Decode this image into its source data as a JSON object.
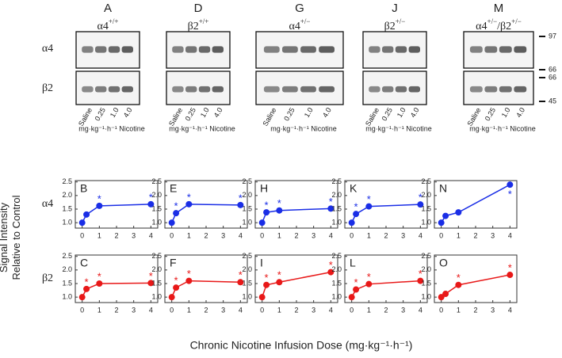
{
  "figure": {
    "blot_letters": [
      "A",
      "D",
      "G",
      "J",
      "M"
    ],
    "genotypes": [
      [
        "α4",
        "+/+"
      ],
      [
        "β2",
        "+/+"
      ],
      [
        "α4",
        "+/−"
      ],
      [
        "β2",
        "+/−"
      ],
      [
        "α4",
        "+/−",
        "/β2",
        "+/−"
      ]
    ],
    "blot_rows": [
      "α4",
      "β2"
    ],
    "lanes": [
      "Saline",
      "0.25",
      "1.0",
      "4.0"
    ],
    "dose_unit": "mg·kg⁻¹·h⁻¹ Nicotine",
    "markers": [
      "97",
      "66",
      "66",
      "45"
    ],
    "chart_rows": [
      "α4",
      "β2"
    ],
    "y_label": [
      "Signal Intensity",
      "Relative to Control"
    ],
    "x_label": "Chronic Nicotine Infusion Dose (mg·kg⁻¹·h⁻¹)"
  },
  "chart_data": [
    {
      "type": "line",
      "title": "B",
      "x": [
        0,
        0.25,
        1,
        4
      ],
      "values": [
        1,
        1.3,
        1.62,
        1.68
      ],
      "color": "#1a2ee6",
      "annotations": [
        {
          "x": 1,
          "text": "*"
        },
        {
          "x": 4,
          "text": "*"
        }
      ],
      "xlim": [
        -0.4,
        4.4
      ],
      "ylim": [
        0.8,
        2.55
      ],
      "xticks": [
        0,
        1,
        2,
        3,
        4
      ],
      "yticks": [
        {
          "value": 1,
          "label": "1.0"
        },
        {
          "value": 1.5,
          "label": "1.5"
        },
        {
          "value": 2,
          "label": "2.0"
        },
        {
          "value": 2.5,
          "label": "2.5"
        }
      ]
    },
    {
      "type": "line",
      "title": "E",
      "x": [
        0,
        0.25,
        1,
        4
      ],
      "values": [
        1,
        1.35,
        1.68,
        1.65
      ],
      "color": "#1a2ee6",
      "annotations": [
        {
          "x": 0.25,
          "text": "*"
        },
        {
          "x": 1,
          "text": "*"
        },
        {
          "x": 4,
          "text": "*"
        }
      ],
      "xlim": [
        -0.4,
        4.4
      ],
      "ylim": [
        0.8,
        2.55
      ],
      "xticks": [
        0,
        1,
        2,
        3,
        4
      ],
      "yticks": [
        {
          "value": 1,
          "label": "1.0"
        },
        {
          "value": 1.5,
          "label": "1.5"
        },
        {
          "value": 2,
          "label": "2.0"
        },
        {
          "value": 2.5,
          "label": "2.5"
        }
      ]
    },
    {
      "type": "line",
      "title": "H",
      "x": [
        0,
        0.25,
        1,
        4
      ],
      "values": [
        1,
        1.38,
        1.45,
        1.52
      ],
      "color": "#1a2ee6",
      "annotations": [
        {
          "x": 0.25,
          "text": "*"
        },
        {
          "x": 1,
          "text": "*"
        },
        {
          "x": 4,
          "text": "*"
        }
      ],
      "xlim": [
        -0.4,
        4.4
      ],
      "ylim": [
        0.8,
        2.55
      ],
      "xticks": [
        0,
        1,
        2,
        3,
        4
      ],
      "yticks": [
        {
          "value": 1,
          "label": "1.0"
        },
        {
          "value": 1.5,
          "label": "1.5"
        },
        {
          "value": 2,
          "label": "2.0"
        },
        {
          "value": 2.5,
          "label": "2.5"
        }
      ]
    },
    {
      "type": "line",
      "title": "K",
      "x": [
        0,
        0.25,
        1,
        4
      ],
      "values": [
        1,
        1.32,
        1.6,
        1.67
      ],
      "color": "#1a2ee6",
      "annotations": [
        {
          "x": 0.25,
          "text": "*"
        },
        {
          "x": 1,
          "text": "*"
        },
        {
          "x": 4,
          "text": "*"
        }
      ],
      "xlim": [
        -0.4,
        4.4
      ],
      "ylim": [
        0.8,
        2.55
      ],
      "xticks": [
        0,
        1,
        2,
        3,
        4
      ],
      "yticks": [
        {
          "value": 1,
          "label": "1.0"
        },
        {
          "value": 1.5,
          "label": "1.5"
        },
        {
          "value": 2,
          "label": "2.0"
        },
        {
          "value": 2.5,
          "label": "2.5"
        }
      ]
    },
    {
      "type": "line",
      "title": "N",
      "x": [
        0,
        0.25,
        1,
        4
      ],
      "values": [
        1,
        1.25,
        1.38,
        2.4
      ],
      "color": "#1a2ee6",
      "annotations": [
        {
          "x": 4,
          "text": "*"
        }
      ],
      "xlim": [
        -0.4,
        4.4
      ],
      "ylim": [
        0.8,
        2.55
      ],
      "xticks": [
        0,
        1,
        2,
        3,
        4
      ],
      "yticks": [
        {
          "value": 1,
          "label": "1.0"
        },
        {
          "value": 1.5,
          "label": "1.5"
        },
        {
          "value": 2,
          "label": "2.0"
        },
        {
          "value": 2.5,
          "label": "2.5"
        }
      ]
    },
    {
      "type": "line",
      "title": "C",
      "x": [
        0,
        0.25,
        1,
        4
      ],
      "values": [
        1,
        1.3,
        1.5,
        1.52
      ],
      "color": "#e81818",
      "annotations": [
        {
          "x": 0.25,
          "text": "*"
        },
        {
          "x": 1,
          "text": "*"
        },
        {
          "x": 4,
          "text": "*"
        }
      ],
      "xlim": [
        -0.4,
        4.4
      ],
      "ylim": [
        0.8,
        2.55
      ],
      "xticks": [
        0,
        1,
        2,
        3,
        4
      ],
      "yticks": [
        {
          "value": 1,
          "label": "1.0"
        },
        {
          "value": 1.5,
          "label": "1.5"
        },
        {
          "value": 2,
          "label": "2.0"
        },
        {
          "value": 2.5,
          "label": "2.5"
        }
      ]
    },
    {
      "type": "line",
      "title": "F",
      "x": [
        0,
        0.25,
        1,
        4
      ],
      "values": [
        1,
        1.35,
        1.6,
        1.55
      ],
      "color": "#e81818",
      "annotations": [
        {
          "x": 0.25,
          "text": "*"
        },
        {
          "x": 1,
          "text": "*"
        },
        {
          "x": 4,
          "text": "*"
        }
      ],
      "xlim": [
        -0.4,
        4.4
      ],
      "ylim": [
        0.8,
        2.55
      ],
      "xticks": [
        0,
        1,
        2,
        3,
        4
      ],
      "yticks": [
        {
          "value": 1,
          "label": "1.0"
        },
        {
          "value": 1.5,
          "label": "1.5"
        },
        {
          "value": 2,
          "label": "2.0"
        },
        {
          "value": 2.5,
          "label": "2.5"
        }
      ]
    },
    {
      "type": "line",
      "title": "I",
      "x": [
        0,
        0.25,
        1,
        4
      ],
      "values": [
        1,
        1.45,
        1.55,
        1.92
      ],
      "color": "#e81818",
      "annotations": [
        {
          "x": 0.25,
          "text": "*"
        },
        {
          "x": 1,
          "text": "*"
        },
        {
          "x": 4,
          "text": "*"
        }
      ],
      "xlim": [
        -0.4,
        4.4
      ],
      "ylim": [
        0.8,
        2.55
      ],
      "xticks": [
        0,
        1,
        2,
        3,
        4
      ],
      "yticks": [
        {
          "value": 1,
          "label": "1.0"
        },
        {
          "value": 1.5,
          "label": "1.5"
        },
        {
          "value": 2,
          "label": "2.0"
        },
        {
          "value": 2.5,
          "label": "2.5"
        }
      ]
    },
    {
      "type": "line",
      "title": "L",
      "x": [
        0,
        0.25,
        1,
        4
      ],
      "values": [
        1,
        1.28,
        1.48,
        1.6
      ],
      "color": "#e81818",
      "annotations": [
        {
          "x": 0.25,
          "text": "*"
        },
        {
          "x": 1,
          "text": "*"
        },
        {
          "x": 4,
          "text": "*"
        }
      ],
      "xlim": [
        -0.4,
        4.4
      ],
      "ylim": [
        0.8,
        2.55
      ],
      "xticks": [
        0,
        1,
        2,
        3,
        4
      ],
      "yticks": [
        {
          "value": 1,
          "label": "1.0"
        },
        {
          "value": 1.5,
          "label": "1.5"
        },
        {
          "value": 2,
          "label": "2.0"
        },
        {
          "value": 2.5,
          "label": "2.5"
        }
      ]
    },
    {
      "type": "line",
      "title": "O",
      "x": [
        0,
        0.25,
        1,
        4
      ],
      "values": [
        1,
        1.12,
        1.45,
        1.82
      ],
      "color": "#e81818",
      "annotations": [
        {
          "x": 1,
          "text": "*"
        },
        {
          "x": 4,
          "text": "*"
        }
      ],
      "xlim": [
        -0.4,
        4.4
      ],
      "ylim": [
        0.8,
        2.55
      ],
      "xticks": [
        0,
        1,
        2,
        3,
        4
      ],
      "yticks": [
        {
          "value": 1,
          "label": "1.0"
        },
        {
          "value": 1.5,
          "label": "1.5"
        },
        {
          "value": 2,
          "label": "2.0"
        },
        {
          "value": 2.5,
          "label": "2.5"
        }
      ]
    }
  ]
}
